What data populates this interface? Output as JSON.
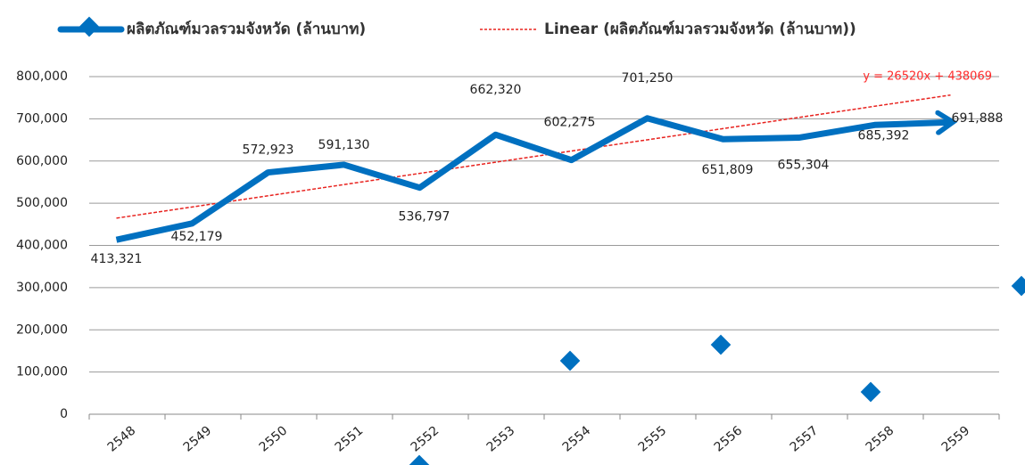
{
  "chart_data": {
    "type": "line",
    "categories": [
      "2548",
      "2549",
      "2550",
      "2551",
      "2552",
      "2553",
      "2554",
      "2555",
      "2556",
      "2557",
      "2558",
      "2559"
    ],
    "series": [
      {
        "name": "ผลิตภัณฑ์มวลรวมจังหวัด (ล้านบาท)",
        "color": "#0070c0",
        "values": [
          413321,
          452179,
          572923,
          591130,
          536797,
          662320,
          602275,
          701250,
          651809,
          655304,
          685392,
          691888
        ]
      },
      {
        "name": "Linear (ผลิตภัณฑ์มวลรวมจังหวัด (ล้านบาท))",
        "color": "#e8231f",
        "values": [
          464589,
          491109,
          517629,
          544149,
          570669,
          597189,
          623709,
          650229,
          676749,
          703269,
          729789,
          756309
        ]
      }
    ],
    "annotation": "y = 26520x + 438069",
    "ylim": [
      0,
      800000
    ],
    "yticks": [
      0,
      {
        "value": 100000,
        "label": "100,000"
      },
      {
        "value": 200000,
        "label": "200,000"
      },
      {
        "value": 300000,
        "label": "300,000"
      },
      {
        "value": 400000,
        "label": "400,000"
      },
      {
        "value": 500000,
        "label": "500,000"
      },
      {
        "value": 600000,
        "label": "600,000"
      },
      {
        "value": 700000,
        "label": "700,000"
      },
      {
        "value": 800000,
        "label": "800,000"
      }
    ],
    "value_labels": [
      "413,321",
      "452,179",
      "572,923",
      "591,130",
      "536,797",
      "662,320",
      "602,275",
      "701,250",
      "651,809",
      "655,304",
      "685,392",
      "691,888"
    ],
    "grid": true
  }
}
